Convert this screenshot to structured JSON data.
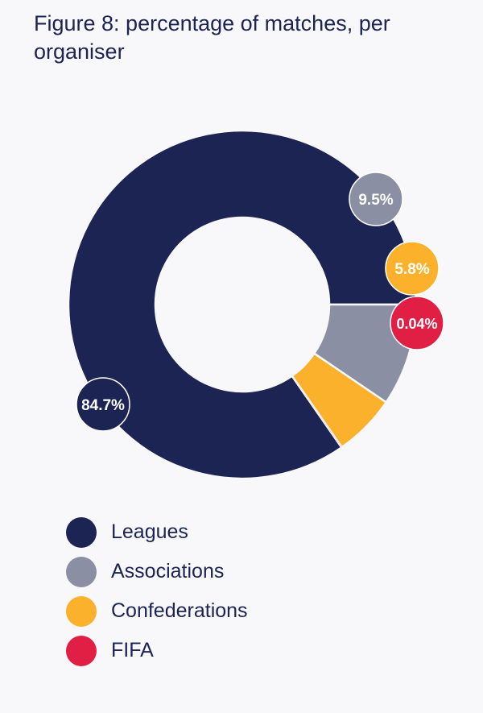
{
  "chart_data": {
    "type": "pie",
    "title": "Figure 8: percentage of matches, per organiser",
    "categories": [
      "Leagues",
      "Associations",
      "Confederations",
      "FIFA"
    ],
    "values": [
      84.7,
      9.5,
      5.8,
      0.04
    ],
    "data_labels": [
      "84.7%",
      "9.5%",
      "5.8%",
      "0.04%"
    ],
    "colors": [
      "#1b2452",
      "#8b8fa3",
      "#fbb12b",
      "#e11f45"
    ],
    "legend": "bottom-left"
  }
}
